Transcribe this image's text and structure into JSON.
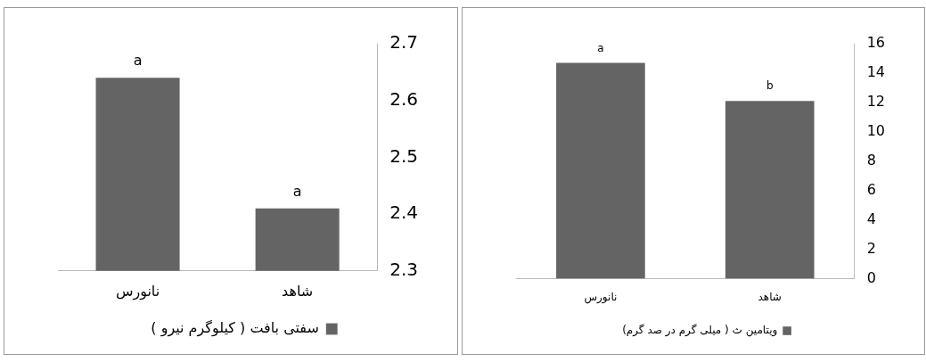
{
  "chart_data": [
    {
      "type": "bar",
      "categories": [
        "نانورس",
        "شاهد"
      ],
      "series": [
        {
          "name": "سفتی بافت ( کیلوگرم نیرو )",
          "color": "#646464",
          "values": [
            2.64,
            2.41
          ]
        }
      ],
      "ylim": [
        2.3,
        2.7
      ],
      "yticks": [
        2.3,
        2.4,
        2.5,
        2.6,
        2.7
      ],
      "grid": false,
      "legend": "bottom",
      "annotations": [
        {
          "text": "a",
          "x": "نانورس",
          "y": 2.64
        },
        {
          "text": "a",
          "x": "شاهد",
          "y": 2.41
        }
      ]
    },
    {
      "type": "bar",
      "categories": [
        "نانورس",
        "شاهد"
      ],
      "series": [
        {
          "name": "ویتامین ث ( میلی گرم در صد گرم)",
          "color": "#646464",
          "values": [
            14.7,
            12.1
          ]
        }
      ],
      "ylim": [
        0,
        16
      ],
      "yticks": [
        0,
        2,
        4,
        6,
        8,
        10,
        12,
        14,
        16
      ],
      "grid": false,
      "legend": "bottom",
      "annotations": [
        {
          "text": "a",
          "x": "نانورس",
          "y": 14.7
        },
        {
          "text": "b",
          "x": "شاهد",
          "y": 12.1
        }
      ]
    }
  ]
}
